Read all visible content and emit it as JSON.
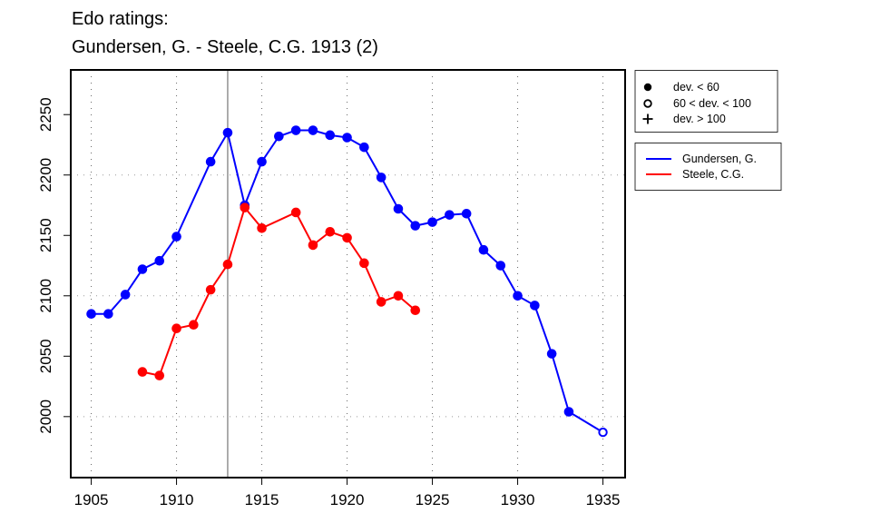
{
  "chart_data": {
    "type": "line",
    "title": [
      "Edo ratings:",
      "Gundersen, G. - Steele, C.G. 1913 (2)"
    ],
    "xlabel": "",
    "ylabel": "",
    "xlim": [
      1903.8,
      1936.3
    ],
    "ylim": [
      1949.5,
      2287
    ],
    "x_ticks": [
      1905,
      1910,
      1915,
      1920,
      1925,
      1930,
      1935
    ],
    "x_tick_labels": [
      "1905",
      "1910",
      "1915",
      "1920",
      "1925",
      "1930",
      "1935"
    ],
    "y_ticks": [
      2000,
      2050,
      2100,
      2150,
      2200,
      2250
    ],
    "y_tick_labels": [
      "2000",
      "2050",
      "2100",
      "2150",
      "2200",
      "2250"
    ],
    "grid": true,
    "vertical_marker_x": 1913,
    "series": [
      {
        "name": "Gundersen, G.",
        "color": "#0000ff",
        "x": [
          1905,
          1906,
          1907,
          1908,
          1909,
          1910,
          1912,
          1913,
          1914,
          1915,
          1916,
          1917,
          1918,
          1919,
          1920,
          1921,
          1922,
          1923,
          1924,
          1925,
          1926,
          1927,
          1928,
          1929,
          1930,
          1931,
          1932,
          1933,
          1935
        ],
        "y": [
          2085,
          2085,
          2101,
          2122,
          2129,
          2149,
          2211,
          2235,
          2175,
          2211,
          2232,
          2237,
          2237,
          2233,
          2231,
          2223,
          2198,
          2172,
          2158,
          2161,
          2167,
          2168,
          2138,
          2125,
          2100,
          2092,
          2052,
          2004,
          1987
        ],
        "marker": [
          "filled",
          "filled",
          "filled",
          "filled",
          "filled",
          "filled",
          "filled",
          "filled",
          "filled",
          "filled",
          "filled",
          "filled",
          "filled",
          "filled",
          "filled",
          "filled",
          "filled",
          "filled",
          "filled",
          "filled",
          "filled",
          "filled",
          "filled",
          "filled",
          "filled",
          "filled",
          "filled",
          "filled",
          "open"
        ]
      },
      {
        "name": "Steele, C.G.",
        "color": "#ff0000",
        "x": [
          1908,
          1909,
          1910,
          1911,
          1912,
          1913,
          1914,
          1915,
          1917,
          1918,
          1919,
          1920,
          1921,
          1922,
          1923,
          1924
        ],
        "y": [
          2037,
          2034,
          2073,
          2076,
          2105,
          2126,
          2173,
          2156,
          2169,
          2142,
          2153,
          2148,
          2127,
          2095,
          2100,
          2088
        ],
        "marker": [
          "filled",
          "filled",
          "filled",
          "filled",
          "filled",
          "filled",
          "filled",
          "filled",
          "filled",
          "filled",
          "filled",
          "filled",
          "filled",
          "filled",
          "filled",
          "filled"
        ]
      }
    ],
    "marker_legend": [
      {
        "symbol": "filled-circle",
        "label": "dev. < 60"
      },
      {
        "symbol": "open-circle",
        "label": "60 < dev. < 100"
      },
      {
        "symbol": "plus",
        "label": "dev. > 100"
      }
    ],
    "series_legend": [
      {
        "color": "#0000ff",
        "label": "Gundersen, G."
      },
      {
        "color": "#ff0000",
        "label": "Steele, C.G."
      }
    ],
    "legend_placement": "right"
  }
}
